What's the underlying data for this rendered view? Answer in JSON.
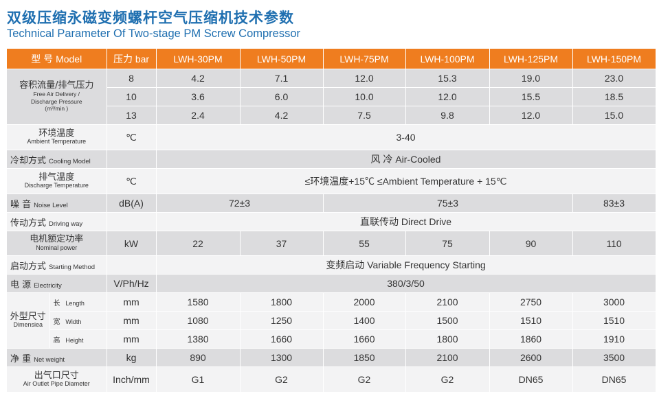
{
  "title_cn": "双级压缩永磁变频螺杆空气压缩机技术参数",
  "title_en": "Technical Parameter Of Two-stage PM Screw Compressor",
  "header": {
    "col0": "型 号 Model",
    "col1": "压力 bar",
    "models": [
      "LWH-30PM",
      "LWH-50PM",
      "LWH-75PM",
      "LWH-100PM",
      "LWH-125PM",
      "LWH-150PM"
    ]
  },
  "free_air": {
    "label_cn": "容积流量/排气压力",
    "label_en1": "Free Air Delivery /",
    "label_en2": "Discharge Pressure",
    "label_unit": "(m³/min )",
    "rows": [
      {
        "pressure": "8",
        "values": [
          "4.2",
          "7.1",
          "12.0",
          "15.3",
          "19.0",
          "23.0"
        ]
      },
      {
        "pressure": "10",
        "values": [
          "3.6",
          "6.0",
          "10.0",
          "12.0",
          "15.5",
          "18.5"
        ]
      },
      {
        "pressure": "13",
        "values": [
          "2.4",
          "4.2",
          "7.5",
          "9.8",
          "12.0",
          "15.0"
        ]
      }
    ]
  },
  "ambient": {
    "label_cn": "环境温度",
    "label_en": "Ambient Temperature",
    "unit": "℃",
    "value": "3-40"
  },
  "cooling": {
    "label_cn": "冷却方式",
    "label_en": "Cooling Model",
    "value": "风 冷  Air-Cooled"
  },
  "discharge_temp": {
    "label_cn": "排气温度",
    "label_en": "Discharge Temperature",
    "unit": "℃",
    "value": "≤环境温度+15℃  ≤Ambient Temperature + 15℃"
  },
  "noise": {
    "label_cn": "噪  音",
    "label_en": "Noise Level",
    "unit": "dB(A)",
    "v1": "72±3",
    "v2": "75±3",
    "v3": "83±3"
  },
  "driving": {
    "label_cn": "传动方式",
    "label_en": "Driving way",
    "value": "直联传动  Direct Drive"
  },
  "power": {
    "label_cn": "电机额定功率",
    "label_en": "Nominal power",
    "unit": "kW",
    "values": [
      "22",
      "37",
      "55",
      "75",
      "90",
      "110"
    ]
  },
  "starting": {
    "label_cn": "启动方式",
    "label_en": "Starting Method",
    "value": "变频启动  Variable Frequency Starting"
  },
  "electricity": {
    "label_cn": "电  源",
    "label_en": "Electricity",
    "unit": "V/Ph/Hz",
    "value": "380/3/50"
  },
  "dimension": {
    "label_cn": "外型尺寸",
    "label_en": "Dimensiea",
    "rows": [
      {
        "sub_cn": "长",
        "sub_en": "Length",
        "unit": "mm",
        "values": [
          "1580",
          "1800",
          "2000",
          "2100",
          "2750",
          "3000"
        ]
      },
      {
        "sub_cn": "宽",
        "sub_en": "Width",
        "unit": "mm",
        "values": [
          "1080",
          "1250",
          "1400",
          "1500",
          "1510",
          "1510"
        ]
      },
      {
        "sub_cn": "高",
        "sub_en": "Height",
        "unit": "mm",
        "values": [
          "1380",
          "1660",
          "1660",
          "1800",
          "1860",
          "1910"
        ]
      }
    ]
  },
  "weight": {
    "label_cn": "净 重",
    "label_en": "Net weight",
    "unit": "kg",
    "values": [
      "890",
      "1300",
      "1850",
      "2100",
      "2600",
      "3500"
    ]
  },
  "outlet": {
    "label_cn": "出气口尺寸",
    "label_en": "Air Outlet Pipe Diameter",
    "unit": "Inch/mm",
    "values": [
      "G1",
      "G2",
      "G2",
      "G2",
      "DN65",
      "DN65"
    ]
  },
  "colors": {
    "header_bg": "#ef7d1f",
    "title": "#1f6fb0",
    "row_dark": "#dcdcde",
    "row_light": "#f3f3f4"
  }
}
